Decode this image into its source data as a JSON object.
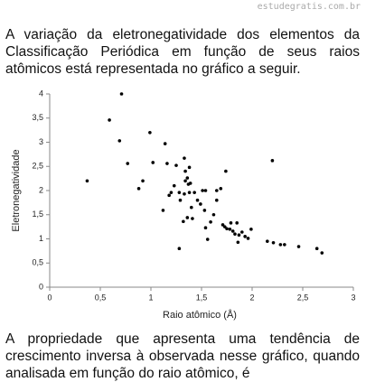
{
  "watermark": "estudegratis.com.br",
  "intro": "A variação da eletronegatividade dos elementos da Classificação Periódica em função de seus raios atômicos está representada no gráfico a seguir.",
  "chart_data": {
    "type": "scatter",
    "x_label": "Raio atômico (Å)",
    "y_label": "Eletronegatividade",
    "color": "#000000",
    "grid": false,
    "xlim": [
      0,
      3
    ],
    "ylim": [
      0,
      4
    ],
    "xticks": [
      0,
      {
        "value": 0.5,
        "label": "0,5"
      },
      1,
      {
        "value": 1.5,
        "label": "1,5"
      },
      2,
      {
        "value": 2.5,
        "label": "2,5"
      },
      3
    ],
    "yticks": [
      0,
      {
        "value": 0.5,
        "label": "0,5"
      },
      1,
      {
        "value": 1.5,
        "label": "1,5"
      },
      2,
      {
        "value": 2.5,
        "label": "2,5"
      },
      3,
      {
        "value": 3.5,
        "label": "3,5"
      },
      4
    ],
    "x": [
      0.37,
      0.59,
      0.71,
      0.69,
      0.77,
      0.88,
      0.92,
      0.99,
      1.02,
      1.14,
      1.16,
      1.12,
      1.18,
      1.2,
      1.23,
      1.25,
      1.28,
      1.29,
      1.28,
      1.33,
      1.34,
      1.34,
      1.36,
      1.37,
      1.38,
      1.38,
      1.39,
      1.33,
      1.32,
      1.36,
      1.4,
      1.41,
      1.43,
      1.46,
      1.49,
      1.51,
      1.53,
      1.54,
      1.54,
      1.56,
      1.59,
      1.62,
      1.65,
      1.65,
      1.69,
      1.74,
      1.71,
      1.73,
      1.75,
      1.78,
      1.79,
      1.81,
      1.85,
      1.83,
      1.87,
      1.9,
      1.86,
      1.93,
      1.96,
      1.99,
      2.2,
      2.15,
      2.21,
      2.28,
      2.32,
      2.46,
      2.64,
      2.69
    ],
    "values": [
      2.2,
      3.46,
      4.0,
      3.03,
      2.56,
      2.04,
      2.2,
      3.2,
      2.58,
      2.97,
      2.56,
      1.59,
      1.9,
      1.96,
      2.1,
      2.52,
      1.96,
      1.8,
      0.8,
      2.67,
      2.4,
      2.2,
      2.26,
      2.13,
      1.96,
      2.48,
      2.15,
      1.93,
      1.36,
      1.44,
      1.65,
      1.42,
      1.96,
      1.8,
      1.72,
      2.0,
      1.59,
      2.0,
      1.23,
      0.99,
      1.35,
      1.5,
      2.0,
      1.8,
      2.04,
      2.4,
      1.29,
      1.25,
      1.21,
      1.2,
      1.33,
      1.16,
      1.33,
      1.1,
      1.08,
      1.14,
      0.93,
      1.05,
      1.01,
      1.2,
      2.62,
      0.95,
      0.92,
      0.88,
      0.88,
      0.84,
      0.8,
      0.71
    ]
  },
  "question": "A propriedade que apresenta uma tendência de crescimento inversa à observada nesse gráfico, quando analisada em função do raio atômico, é"
}
